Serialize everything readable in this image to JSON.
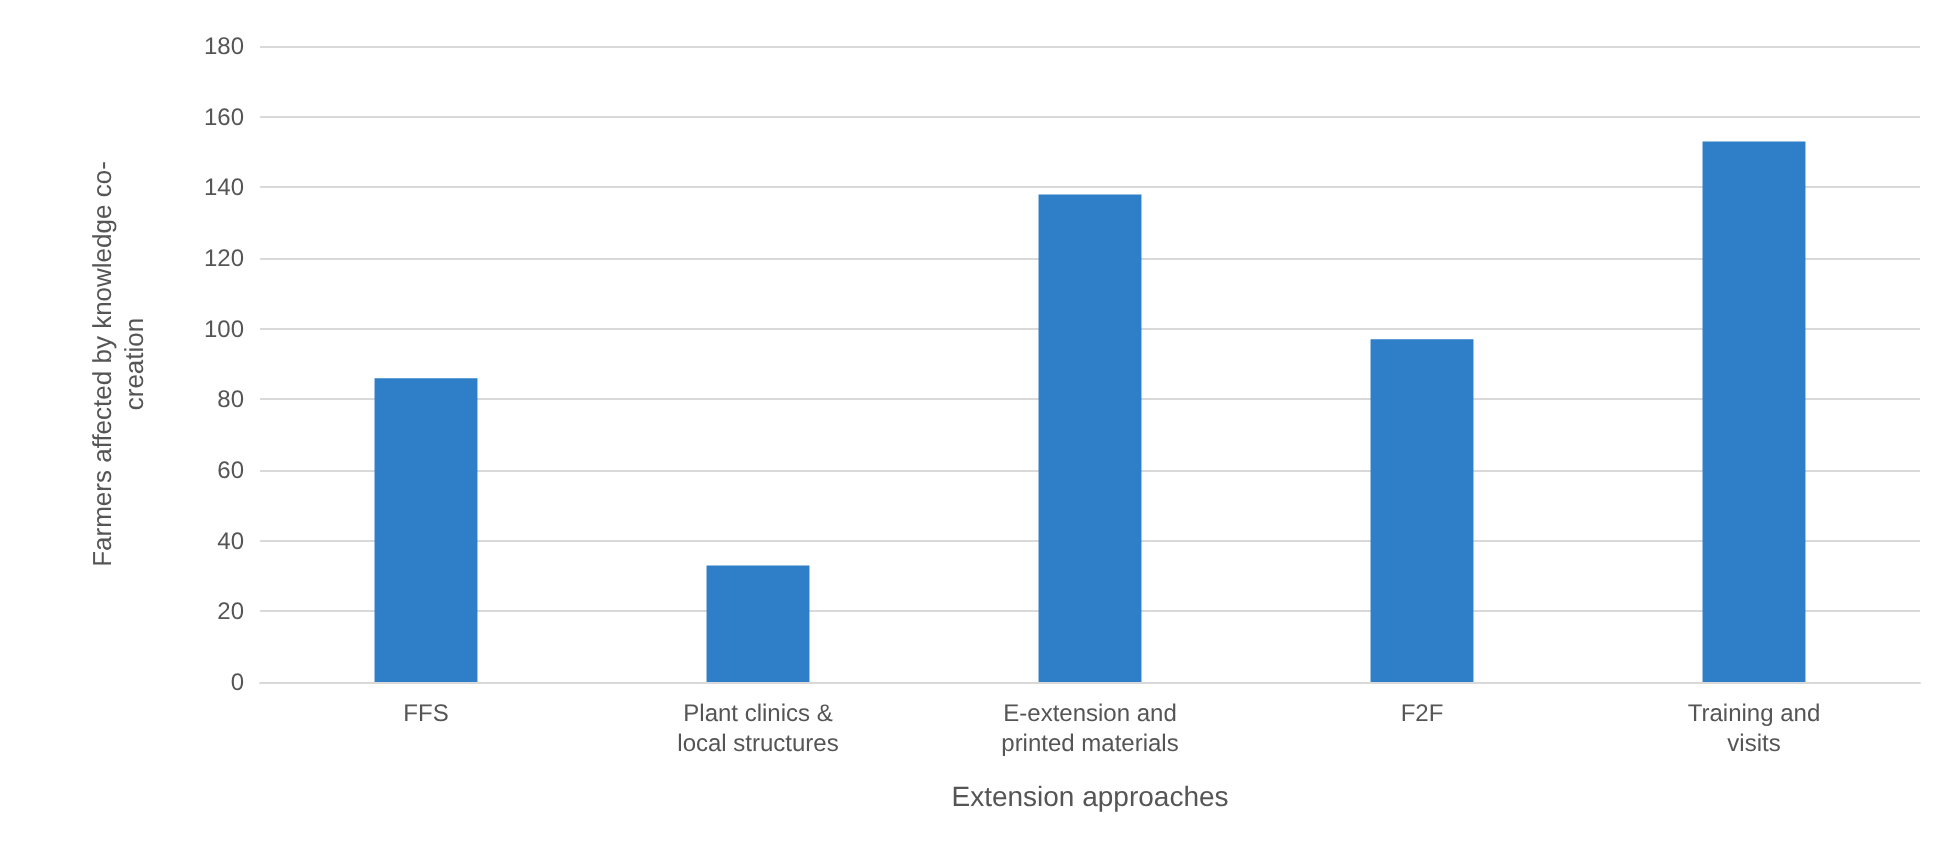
{
  "chart_data": {
    "type": "bar",
    "categories": [
      "FFS",
      "Plant clinics &\nlocal structures",
      "E-extension and\nprinted materials",
      "F2F",
      "Training and\nvisits"
    ],
    "values": [
      86,
      33,
      138,
      97,
      153
    ],
    "color": "#2e7ec8",
    "xlabel": "Extension approaches",
    "ylabel": "Farmers affected by knowledge co-\ncreation",
    "ylim": [
      0,
      180
    ],
    "yticks": [
      0,
      20,
      40,
      60,
      80,
      100,
      120,
      140,
      160,
      180
    ],
    "grid": "y"
  }
}
